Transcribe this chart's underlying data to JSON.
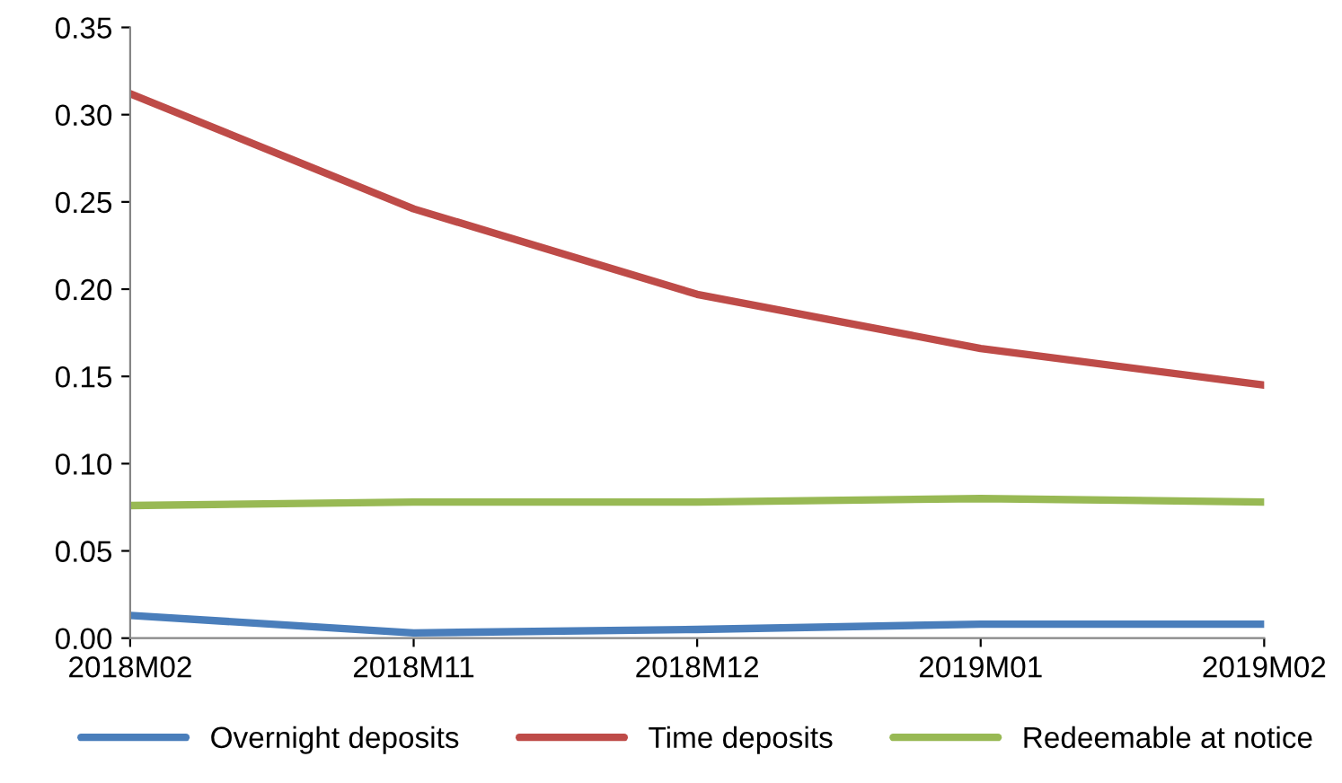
{
  "chart_data": {
    "type": "line",
    "categories": [
      "2018M02",
      "2018M11",
      "2018M12",
      "2019M01",
      "2019M02"
    ],
    "series": [
      {
        "name": "Overnight deposits",
        "color": "#4a7ebb",
        "values": [
          0.013,
          0.003,
          0.005,
          0.008,
          0.008
        ]
      },
      {
        "name": "Time deposits",
        "color": "#be4b48",
        "values": [
          0.312,
          0.246,
          0.197,
          0.166,
          0.145
        ]
      },
      {
        "name": "Redeemable at notice",
        "color": "#98b954",
        "values": [
          0.076,
          0.078,
          0.078,
          0.08,
          0.078
        ]
      }
    ],
    "ylim": [
      0,
      0.35
    ],
    "yticks": [
      {
        "value": 0,
        "label": "0.00"
      },
      {
        "value": 0.05,
        "label": "0.05"
      },
      {
        "value": 0.1,
        "label": "0.10"
      },
      {
        "value": 0.15,
        "label": "0.15"
      },
      {
        "value": 0.2,
        "label": "0.20"
      },
      {
        "value": 0.25,
        "label": "0.25"
      },
      {
        "value": 0.3,
        "label": "0.30"
      },
      {
        "value": 0.35,
        "label": "0.35"
      }
    ],
    "grid": false,
    "legend": "bottom",
    "marker": "none",
    "line_style": "solid"
  }
}
